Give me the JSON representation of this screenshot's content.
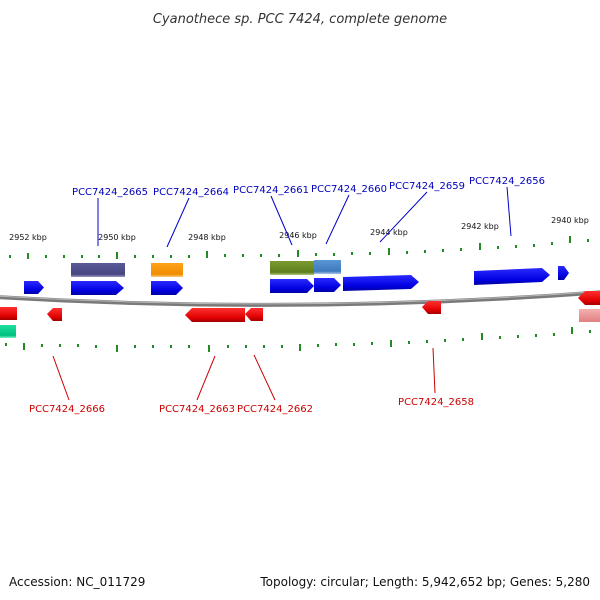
{
  "title": "Cyanothece sp. PCC 7424, complete genome",
  "footer": {
    "accession": "Accession: NC_011729",
    "summary": "Topology: circular; Length: 5,942,652 bp; Genes: 5,280"
  },
  "ruler_labels": [
    "2952 kbp",
    "2950 kbp",
    "2948 kbp",
    "2946 kbp",
    "2944 kbp",
    "2942 kbp",
    "2940 kbp"
  ],
  "labels": {
    "forward": [
      "PCC7424_2665",
      "PCC7424_2664",
      "PCC7424_2661",
      "PCC7424_2660",
      "PCC7424_2659",
      "PCC7424_2656"
    ],
    "reverse": [
      "PCC7424_2666",
      "PCC7424_2663",
      "PCC7424_2662",
      "PCC7424_2658"
    ]
  },
  "colors": {
    "forward_strand": "#0000ee",
    "reverse_strand": "#ee0000",
    "forward_label": "#0000bb",
    "reverse_label": "#cc0000",
    "backbone": "#808080",
    "ticks": "#228b22",
    "purple_feature": "#4b4a8c",
    "orange_feature": "#ff9900",
    "olive_feature": "#6b8e23",
    "steelblue_feature": "#4a86c8",
    "teal_feature": "#00cc88",
    "pink_feature": "#f4a0a0"
  }
}
